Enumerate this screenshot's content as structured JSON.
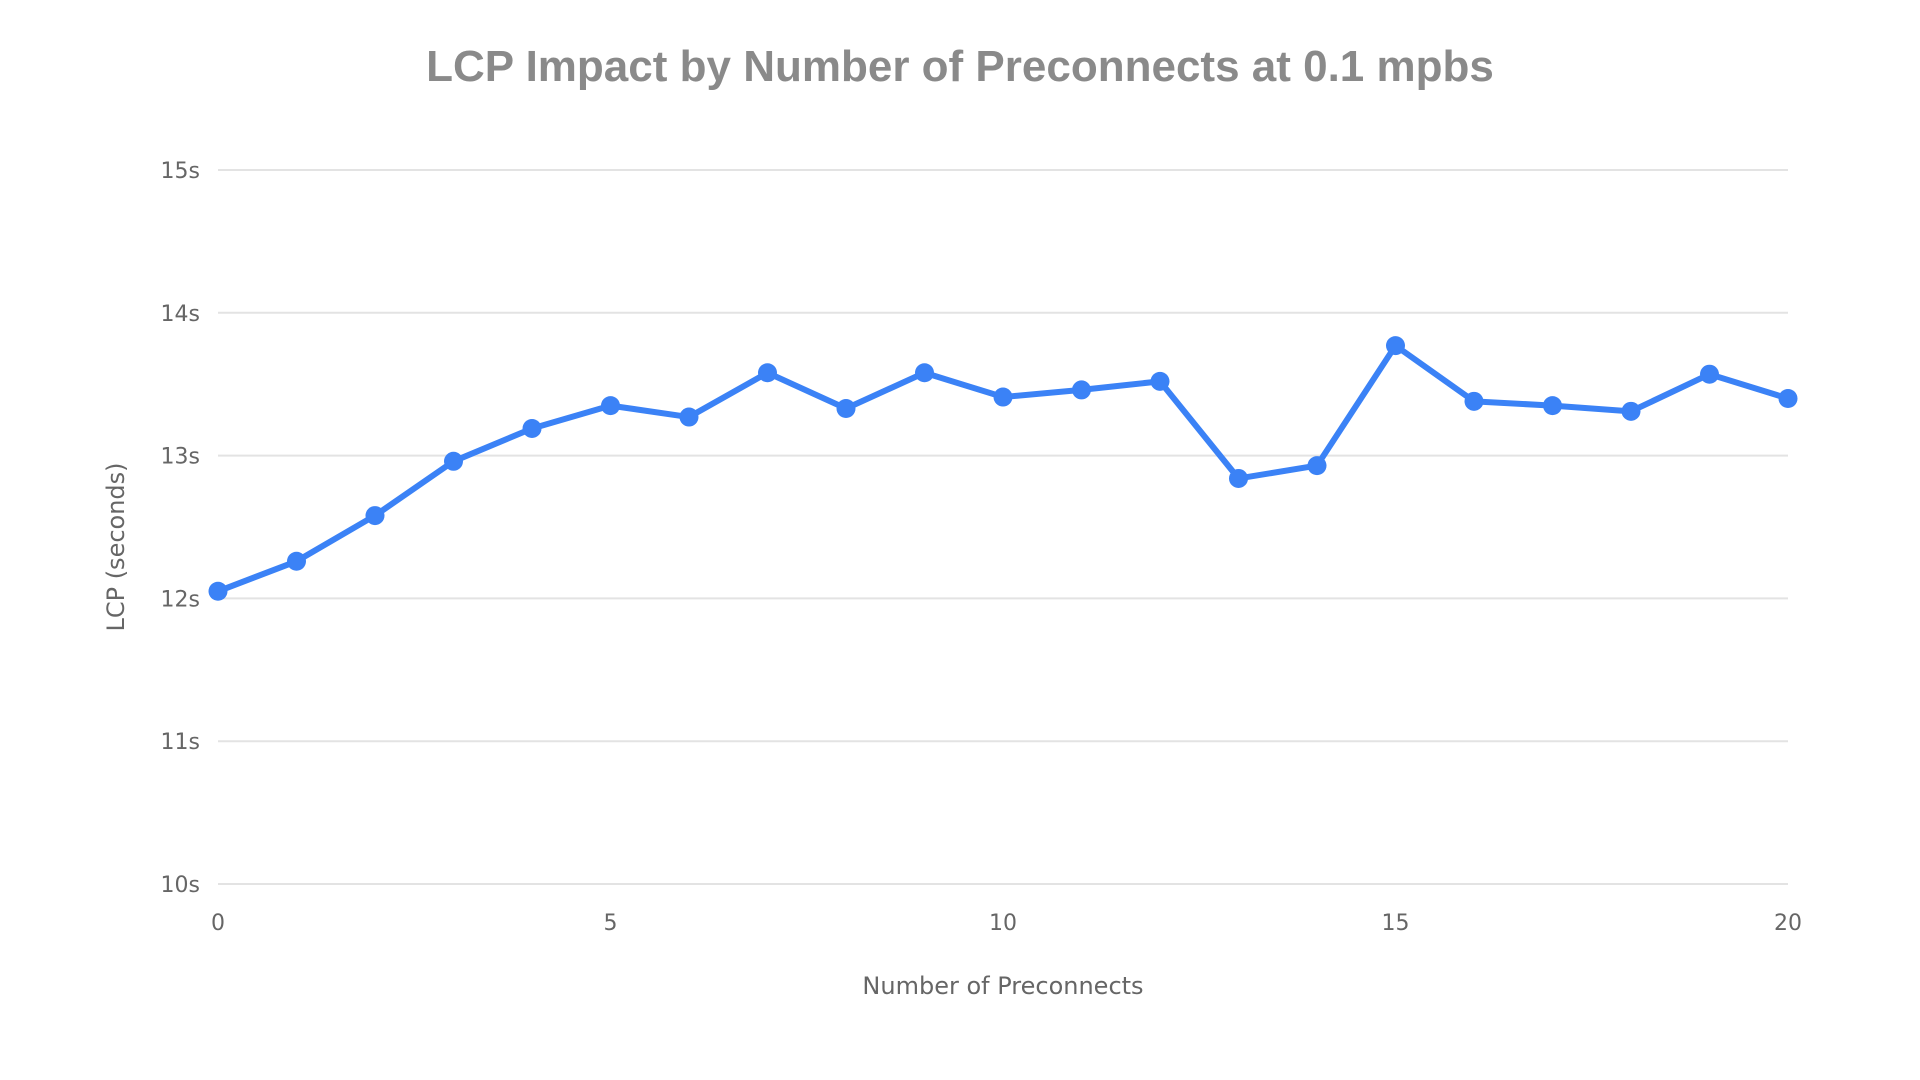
{
  "chart_data": {
    "type": "line",
    "title": "LCP Impact by Number of Preconnects at 0.1 mpbs",
    "xlabel": "Number of Preconnects",
    "ylabel": "LCP (seconds)",
    "xlim": [
      0,
      20
    ],
    "ylim": [
      10,
      15
    ],
    "xticks": [
      "0",
      "5",
      "10",
      "15",
      "20"
    ],
    "yticks": [
      "10s",
      "11s",
      "12s",
      "13s",
      "14s",
      "15s"
    ],
    "grid": "horizontal",
    "color": "#3b82f6",
    "x": [
      0,
      1,
      2,
      3,
      4,
      5,
      6,
      7,
      8,
      9,
      10,
      11,
      12,
      13,
      14,
      15,
      16,
      17,
      18,
      19,
      20
    ],
    "values": [
      12.05,
      12.26,
      12.58,
      12.96,
      13.19,
      13.35,
      13.27,
      13.58,
      13.33,
      13.58,
      13.41,
      13.46,
      13.52,
      12.84,
      12.93,
      13.77,
      13.38,
      13.35,
      13.31,
      13.57,
      13.4
    ]
  }
}
